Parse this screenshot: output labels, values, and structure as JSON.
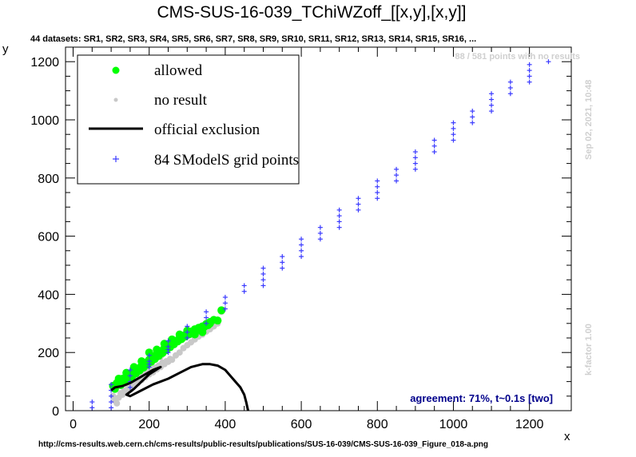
{
  "chart_data": {
    "type": "scatter",
    "title": "CMS-SUS-16-039_TChiWZoff_[[x,y],[x,y]]",
    "subtitle": "44 datasets: SR1, SR2, SR3, SR4, SR5, SR6, SR7, SR8, SR9, SR10, SR11, SR12, SR13, SR14, SR15, SR16,  ...",
    "xlabel": "x",
    "ylabel": "y",
    "xlim": [
      -20,
      1310
    ],
    "ylim": [
      0,
      1250
    ],
    "xticks": [
      0,
      200,
      400,
      600,
      800,
      1000,
      1200
    ],
    "yticks": [
      0,
      200,
      400,
      600,
      800,
      1000,
      1200
    ],
    "legend": {
      "placement": "top-left",
      "entries": [
        {
          "label": "allowed",
          "color": "#00ff00",
          "marker": "circle"
        },
        {
          "label": "no result",
          "color": "#c8c8c8",
          "marker": "dot"
        },
        {
          "label": "official exclusion",
          "color": "#000000",
          "marker": "line"
        },
        {
          "label": "84 SModelS grid points",
          "color": "#3a3aff",
          "marker": "plus"
        }
      ]
    },
    "no_result_note": "88 / 581 points with no results",
    "date_note": "Sep 02, 2021, 10:48",
    "kfactor_note": "k-factor 1.00",
    "agreement_note": "agreement: 71%, t~0.1s [two]",
    "source_url": "http://cms-results.web.cern.ch/cms-results/public-results/publications/SUS-16-039/CMS-SUS-16-039_Figure_018-a.png",
    "series": [
      {
        "name": "allowed",
        "color": "#00ff00",
        "points": [
          [
            105,
            85
          ],
          [
            115,
            95
          ],
          [
            120,
            100
          ],
          [
            130,
            110
          ],
          [
            140,
            118
          ],
          [
            150,
            125
          ],
          [
            160,
            135
          ],
          [
            170,
            145
          ],
          [
            180,
            155
          ],
          [
            190,
            165
          ],
          [
            200,
            175
          ],
          [
            210,
            185
          ],
          [
            220,
            195
          ],
          [
            230,
            205
          ],
          [
            240,
            215
          ],
          [
            250,
            222
          ],
          [
            260,
            232
          ],
          [
            270,
            240
          ],
          [
            280,
            250
          ],
          [
            290,
            258
          ],
          [
            300,
            265
          ],
          [
            310,
            272
          ],
          [
            320,
            280
          ],
          [
            330,
            285
          ],
          [
            340,
            290
          ],
          [
            350,
            298
          ],
          [
            360,
            305
          ],
          [
            370,
            312
          ],
          [
            390,
            345
          ],
          [
            110,
            75
          ],
          [
            125,
            88
          ],
          [
            135,
            98
          ],
          [
            145,
            108
          ],
          [
            155,
            118
          ],
          [
            165,
            128
          ],
          [
            175,
            138
          ],
          [
            185,
            148
          ],
          [
            195,
            158
          ],
          [
            205,
            168
          ],
          [
            215,
            178
          ],
          [
            225,
            188
          ],
          [
            235,
            198
          ],
          [
            245,
            208
          ],
          [
            255,
            218
          ],
          [
            265,
            228
          ],
          [
            275,
            238
          ],
          [
            285,
            246
          ],
          [
            295,
            255
          ],
          [
            305,
            262
          ],
          [
            315,
            270
          ],
          [
            325,
            276
          ],
          [
            335,
            282
          ],
          [
            345,
            288
          ],
          [
            355,
            294
          ],
          [
            200,
            200
          ],
          [
            220,
            210
          ],
          [
            240,
            230
          ],
          [
            260,
            245
          ],
          [
            280,
            262
          ],
          [
            300,
            275
          ],
          [
            320,
            262
          ],
          [
            340,
            270
          ],
          [
            360,
            300
          ],
          [
            380,
            310
          ],
          [
            180,
            170
          ],
          [
            160,
            150
          ],
          [
            140,
            130
          ],
          [
            120,
            110
          ]
        ]
      },
      {
        "name": "no result",
        "color": "#c8c8c8",
        "points": [
          [
            105,
            50
          ],
          [
            110,
            35
          ],
          [
            115,
            25
          ],
          [
            120,
            45
          ],
          [
            125,
            60
          ],
          [
            130,
            55
          ],
          [
            135,
            70
          ],
          [
            140,
            65
          ],
          [
            145,
            80
          ],
          [
            150,
            72
          ],
          [
            155,
            90
          ],
          [
            160,
            85
          ],
          [
            165,
            100
          ],
          [
            170,
            95
          ],
          [
            175,
            110
          ],
          [
            180,
            105
          ],
          [
            185,
            120
          ],
          [
            190,
            115
          ],
          [
            195,
            130
          ],
          [
            200,
            125
          ],
          [
            205,
            138
          ],
          [
            210,
            132
          ],
          [
            215,
            148
          ],
          [
            220,
            142
          ],
          [
            225,
            155
          ],
          [
            230,
            150
          ],
          [
            235,
            165
          ],
          [
            240,
            160
          ],
          [
            245,
            170
          ],
          [
            250,
            168
          ],
          [
            255,
            178
          ],
          [
            260,
            175
          ],
          [
            270,
            190
          ],
          [
            280,
            200
          ],
          [
            290,
            215
          ],
          [
            300,
            225
          ],
          [
            310,
            235
          ],
          [
            320,
            245
          ],
          [
            330,
            255
          ],
          [
            340,
            262
          ],
          [
            350,
            272
          ],
          [
            360,
            280
          ],
          [
            370,
            290
          ],
          [
            380,
            300
          ],
          [
            390,
            340
          ],
          [
            140,
            110
          ],
          [
            160,
            125
          ],
          [
            180,
            145
          ],
          [
            200,
            160
          ],
          [
            150,
            100
          ],
          [
            170,
            120
          ],
          [
            190,
            140
          ],
          [
            210,
            170
          ],
          [
            230,
            185
          ]
        ]
      },
      {
        "name": "84 SModelS grid points",
        "color": "#3a3aff",
        "points": [
          [
            50,
            30
          ],
          [
            50,
            10
          ],
          [
            100,
            90
          ],
          [
            100,
            70
          ],
          [
            100,
            50
          ],
          [
            100,
            30
          ],
          [
            100,
            10
          ],
          [
            150,
            140
          ],
          [
            150,
            120
          ],
          [
            150,
            100
          ],
          [
            150,
            80
          ],
          [
            200,
            190
          ],
          [
            200,
            170
          ],
          [
            200,
            150
          ],
          [
            250,
            240
          ],
          [
            250,
            220
          ],
          [
            250,
            200
          ],
          [
            300,
            290
          ],
          [
            300,
            270
          ],
          [
            300,
            250
          ],
          [
            350,
            340
          ],
          [
            350,
            320
          ],
          [
            350,
            300
          ],
          [
            400,
            390
          ],
          [
            400,
            370
          ],
          [
            400,
            350
          ],
          [
            450,
            430
          ],
          [
            450,
            410
          ],
          [
            500,
            490
          ],
          [
            500,
            470
          ],
          [
            500,
            450
          ],
          [
            500,
            430
          ],
          [
            550,
            530
          ],
          [
            550,
            510
          ],
          [
            550,
            490
          ],
          [
            600,
            590
          ],
          [
            600,
            570
          ],
          [
            600,
            550
          ],
          [
            600,
            530
          ],
          [
            650,
            630
          ],
          [
            650,
            610
          ],
          [
            650,
            590
          ],
          [
            700,
            690
          ],
          [
            700,
            670
          ],
          [
            700,
            650
          ],
          [
            700,
            630
          ],
          [
            750,
            730
          ],
          [
            750,
            710
          ],
          [
            750,
            690
          ],
          [
            800,
            790
          ],
          [
            800,
            770
          ],
          [
            800,
            750
          ],
          [
            800,
            730
          ],
          [
            850,
            830
          ],
          [
            850,
            810
          ],
          [
            850,
            790
          ],
          [
            900,
            890
          ],
          [
            900,
            870
          ],
          [
            900,
            850
          ],
          [
            900,
            830
          ],
          [
            950,
            930
          ],
          [
            950,
            910
          ],
          [
            950,
            890
          ],
          [
            1000,
            990
          ],
          [
            1000,
            970
          ],
          [
            1000,
            950
          ],
          [
            1000,
            930
          ],
          [
            1050,
            1030
          ],
          [
            1050,
            1010
          ],
          [
            1050,
            990
          ],
          [
            1100,
            1090
          ],
          [
            1100,
            1070
          ],
          [
            1100,
            1050
          ],
          [
            1100,
            1030
          ],
          [
            1150,
            1130
          ],
          [
            1150,
            1110
          ],
          [
            1150,
            1090
          ],
          [
            1200,
            1190
          ],
          [
            1200,
            1170
          ],
          [
            1200,
            1150
          ],
          [
            1200,
            1130
          ],
          [
            1250,
            1200
          ],
          [
            200,
            160
          ],
          [
            250,
            210
          ]
        ]
      }
    ],
    "exclusion_contour": [
      [
        100,
        70
      ],
      [
        110,
        80
      ],
      [
        130,
        85
      ],
      [
        150,
        95
      ],
      [
        170,
        110
      ],
      [
        190,
        125
      ],
      [
        210,
        140
      ],
      [
        230,
        150
      ],
      [
        200,
        125
      ],
      [
        180,
        100
      ],
      [
        160,
        75
      ],
      [
        140,
        55
      ],
      [
        150,
        50
      ],
      [
        180,
        70
      ],
      [
        210,
        90
      ],
      [
        250,
        110
      ],
      [
        280,
        130
      ],
      [
        310,
        150
      ],
      [
        340,
        160
      ],
      [
        360,
        160
      ],
      [
        380,
        155
      ],
      [
        400,
        140
      ],
      [
        420,
        110
      ],
      [
        440,
        80
      ],
      [
        450,
        55
      ],
      [
        455,
        30
      ],
      [
        460,
        0
      ]
    ]
  }
}
